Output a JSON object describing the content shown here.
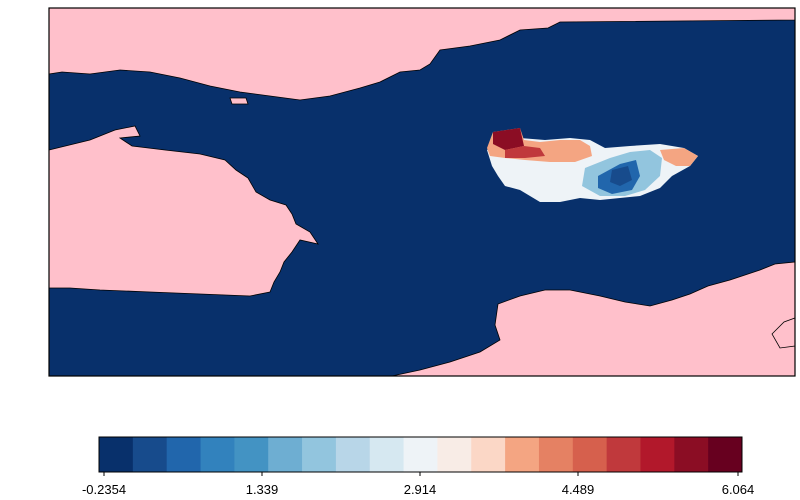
{
  "map": {
    "ocean_color": "#08306b",
    "land_color": "#ffc0cb",
    "coastline_color": "#000000",
    "regions": [
      "land-north",
      "land-west",
      "land-south",
      "land-southeast-islet",
      "data-anomaly-patch"
    ]
  },
  "colorbar": {
    "colors": [
      "#08306b",
      "#174b8c",
      "#2166ac",
      "#3282bd",
      "#4393c3",
      "#6eaed2",
      "#92c5de",
      "#b8d6e8",
      "#d6e8f1",
      "#eef3f7",
      "#f8ece6",
      "#fbd7c6",
      "#f4a582",
      "#e58163",
      "#d6604d",
      "#c0393c",
      "#b2182b",
      "#8b0d24",
      "#67001f"
    ],
    "ticks": [
      "-0.2354",
      "1.339",
      "2.914",
      "4.489",
      "6.064"
    ]
  }
}
